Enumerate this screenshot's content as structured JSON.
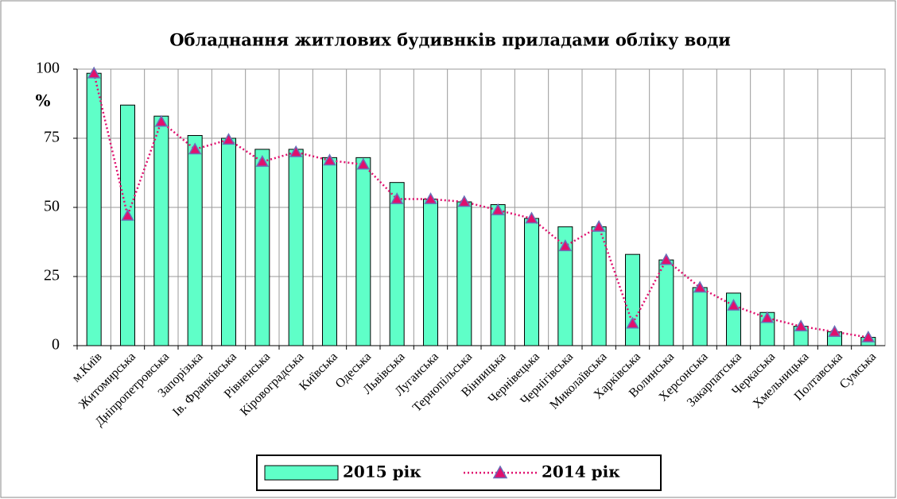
{
  "chart_data": {
    "type": "bar_line",
    "title": "Обладнання житлових будивнків приладами обліку води",
    "y_label": "%",
    "categories": [
      "м.Київ",
      "Житомирська",
      "Дніпропетровська",
      "Запорізька",
      "Ів. Франківська",
      "Рівненська",
      "Кіровоградська",
      "Київська",
      "Одеська",
      "Львівська",
      "Луганська",
      "Тернопільська",
      "Вінницька",
      "Чернівецька",
      "Чернігівська",
      "Миколаївська",
      "Харківська",
      "Волинська",
      "Херсонська",
      "Закарпатська",
      "Черкаська",
      "Хмельницька",
      "Полтавська",
      "Сумська"
    ],
    "series": [
      {
        "name": "2015 рік",
        "type": "bar",
        "color": "#5fffc8",
        "values": [
          98.5,
          87,
          83,
          76,
          75,
          71,
          71,
          68,
          68,
          59,
          53,
          52,
          51,
          46,
          43,
          43,
          33,
          31,
          21,
          19,
          12,
          7,
          5,
          3
        ]
      },
      {
        "name": "2014 рік",
        "type": "line",
        "color": "#e0106e",
        "values": [
          98.5,
          47,
          81,
          71,
          74.5,
          66.5,
          70,
          67,
          65.5,
          53,
          53,
          52,
          49,
          46,
          36,
          43,
          8,
          31,
          21,
          14.5,
          10,
          7,
          5,
          3
        ]
      }
    ],
    "ylim": [
      0,
      100
    ],
    "yticks": [
      0,
      25,
      50,
      75,
      100
    ],
    "grid": true,
    "legend": "bottom"
  }
}
